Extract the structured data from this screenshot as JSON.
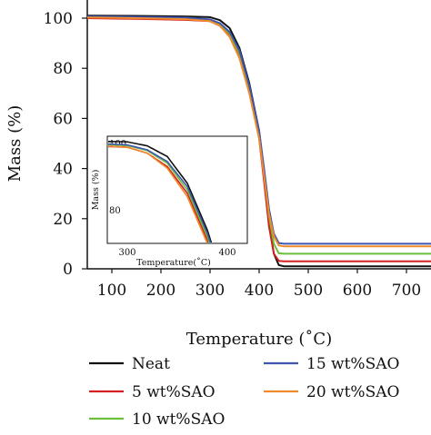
{
  "chart_data": {
    "type": "line",
    "ylabel": "Mass (%)",
    "xlabel": "Temperature (˚C)",
    "xlim": [
      50,
      750
    ],
    "ylim": [
      0,
      100
    ],
    "x_ticks": [
      "100",
      "200",
      "300",
      "400",
      "500",
      "600",
      "700"
    ],
    "y_ticks": [
      "0",
      "20",
      "40",
      "60",
      "80",
      "100"
    ],
    "series": [
      {
        "name": "Neat",
        "color": "#111111",
        "x": [
          50,
          150,
          250,
          300,
          320,
          340,
          360,
          380,
          400,
          410,
          420,
          430,
          440,
          450,
          500,
          600,
          750
        ],
        "y": [
          101,
          100.9,
          100.7,
          100.4,
          99.2,
          96,
          88,
          74,
          55,
          38,
          18,
          6,
          1.5,
          1,
          1,
          1,
          1
        ]
      },
      {
        "name": "5 wt%SAO",
        "color": "#d42020",
        "x": [
          50,
          150,
          250,
          300,
          320,
          340,
          360,
          380,
          400,
          410,
          420,
          430,
          440,
          450,
          500,
          600,
          750
        ],
        "y": [
          100,
          99.7,
          99.3,
          98.8,
          97,
          93,
          85,
          71,
          52,
          35,
          17,
          6,
          3.2,
          3,
          3,
          3,
          3
        ]
      },
      {
        "name": "10 wt%SAO",
        "color": "#6bbf3a",
        "x": [
          50,
          150,
          250,
          300,
          320,
          340,
          360,
          380,
          400,
          410,
          420,
          430,
          440,
          450,
          500,
          600,
          750
        ],
        "y": [
          100.5,
          100.3,
          100,
          99.3,
          97.8,
          94,
          86,
          72,
          54,
          38,
          21,
          10,
          6.2,
          6,
          6,
          6,
          6
        ]
      },
      {
        "name": "15 wt%SAO",
        "color": "#3d57b0",
        "x": [
          50,
          150,
          250,
          300,
          320,
          340,
          360,
          380,
          400,
          410,
          420,
          430,
          440,
          450,
          500,
          600,
          750
        ],
        "y": [
          100.7,
          100.5,
          100.2,
          99.5,
          98,
          94.5,
          87,
          73,
          55,
          40,
          24,
          14,
          10.3,
          10,
          10,
          10,
          10
        ]
      },
      {
        "name": "20 wt%SAO",
        "color": "#f08a2a",
        "x": [
          50,
          150,
          250,
          300,
          320,
          340,
          360,
          380,
          400,
          410,
          420,
          430,
          440,
          450,
          500,
          600,
          750
        ],
        "y": [
          100.3,
          100,
          99.6,
          98.8,
          97,
          92.5,
          84,
          70,
          52,
          37,
          22,
          13,
          9.3,
          9,
          9,
          9,
          9
        ]
      }
    ],
    "inset": {
      "ylabel": "Mass (%)",
      "xlabel": "Temperature(˚C)",
      "xlim": [
        280,
        420
      ],
      "ylim": [
        70,
        101
      ],
      "x_ticks": [
        "300",
        "400"
      ],
      "y_ticks": [
        "100",
        "80"
      ]
    },
    "legend": {
      "placement": "bottom",
      "columns": 2
    }
  }
}
